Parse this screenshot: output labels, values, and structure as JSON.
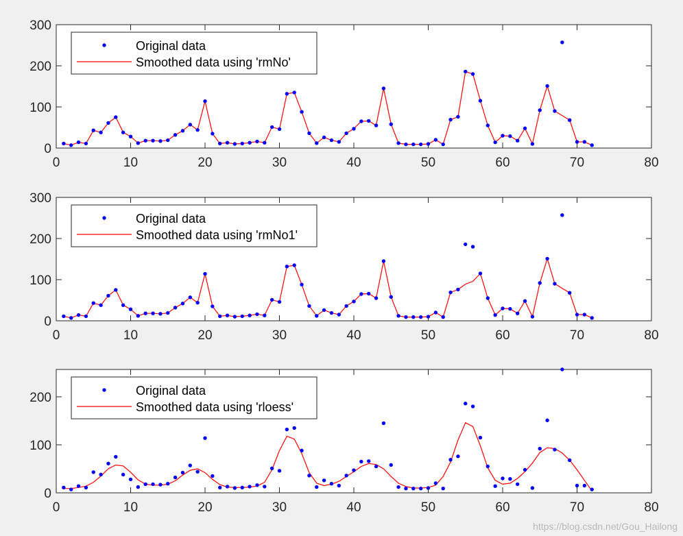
{
  "figure": {
    "watermark": "https://blog.csdn.net/Gou_Hailong",
    "colors": {
      "data": "#0000ff",
      "smooth": "#ff0000",
      "axis": "#262626",
      "background": "#f0f0f0",
      "axes_face": "#ffffff"
    }
  },
  "chart_data": [
    {
      "type": "line",
      "title": "",
      "xlabel": "",
      "ylabel": "",
      "xlim": [
        0,
        80
      ],
      "ylim": [
        0,
        300
      ],
      "xticks": [
        0,
        10,
        20,
        30,
        40,
        50,
        60,
        70,
        80
      ],
      "yticks": [
        0,
        100,
        200,
        300
      ],
      "legend": {
        "position": "top-left",
        "entries": [
          "Original data",
          "Smoothed data using 'rmNo'"
        ]
      },
      "series": [
        {
          "name": "Original data",
          "kind": "scatter",
          "x": [
            1,
            2,
            3,
            4,
            5,
            6,
            7,
            8,
            9,
            10,
            11,
            12,
            13,
            14,
            15,
            16,
            17,
            18,
            19,
            20,
            21,
            22,
            23,
            24,
            25,
            26,
            27,
            28,
            29,
            30,
            31,
            32,
            33,
            34,
            35,
            36,
            37,
            38,
            39,
            40,
            41,
            42,
            43,
            44,
            45,
            46,
            47,
            48,
            49,
            50,
            51,
            52,
            53,
            54,
            55,
            56,
            57,
            58,
            59,
            60,
            61,
            62,
            63,
            64,
            65,
            66,
            67,
            68,
            69,
            70,
            71,
            72
          ],
          "values": [
            11,
            7,
            14,
            11,
            43,
            38,
            61,
            75,
            38,
            28,
            12,
            18,
            18,
            17,
            19,
            32,
            42,
            57,
            44,
            114,
            35,
            11,
            13,
            10,
            11,
            13,
            16,
            13,
            51,
            46,
            132,
            135,
            88,
            36,
            12,
            26,
            19,
            15,
            36,
            47,
            65,
            66,
            55,
            145,
            58,
            12,
            9,
            9,
            9,
            10,
            20,
            9,
            69,
            76,
            186,
            180,
            115,
            55,
            14,
            30,
            29,
            18,
            48,
            10,
            92,
            151,
            90,
            257,
            68,
            15,
            15,
            7
          ]
        },
        {
          "name": "Smoothed data using 'rmNo'",
          "kind": "line",
          "x": [
            1,
            2,
            3,
            4,
            5,
            6,
            7,
            8,
            9,
            10,
            11,
            12,
            13,
            14,
            15,
            16,
            17,
            18,
            19,
            20,
            21,
            22,
            23,
            24,
            25,
            26,
            27,
            28,
            29,
            30,
            31,
            32,
            33,
            34,
            35,
            36,
            37,
            38,
            39,
            40,
            41,
            42,
            43,
            44,
            45,
            46,
            47,
            48,
            49,
            50,
            51,
            52,
            53,
            54,
            55,
            56,
            57,
            58,
            59,
            60,
            61,
            62,
            63,
            64,
            65,
            66,
            67,
            68,
            69,
            70,
            71,
            72
          ],
          "values": [
            11,
            7,
            14,
            11,
            43,
            38,
            61,
            75,
            38,
            28,
            12,
            18,
            18,
            17,
            19,
            32,
            42,
            57,
            44,
            114,
            35,
            11,
            13,
            10,
            11,
            13,
            16,
            13,
            51,
            46,
            132,
            135,
            88,
            36,
            12,
            26,
            19,
            15,
            36,
            47,
            65,
            66,
            55,
            145,
            58,
            12,
            9,
            9,
            9,
            10,
            20,
            9,
            69,
            76,
            186,
            180,
            115,
            55,
            14,
            30,
            29,
            18,
            48,
            10,
            92,
            151,
            90,
            79,
            68,
            15,
            15,
            7
          ]
        }
      ]
    },
    {
      "type": "line",
      "title": "",
      "xlabel": "",
      "ylabel": "",
      "xlim": [
        0,
        80
      ],
      "ylim": [
        0,
        300
      ],
      "xticks": [
        0,
        10,
        20,
        30,
        40,
        50,
        60,
        70,
        80
      ],
      "yticks": [
        0,
        100,
        200,
        300
      ],
      "legend": {
        "position": "top-left",
        "entries": [
          "Original data",
          "Smoothed data using 'rmNo1'"
        ]
      },
      "series": [
        {
          "name": "Original data",
          "kind": "scatter",
          "x": [
            1,
            2,
            3,
            4,
            5,
            6,
            7,
            8,
            9,
            10,
            11,
            12,
            13,
            14,
            15,
            16,
            17,
            18,
            19,
            20,
            21,
            22,
            23,
            24,
            25,
            26,
            27,
            28,
            29,
            30,
            31,
            32,
            33,
            34,
            35,
            36,
            37,
            38,
            39,
            40,
            41,
            42,
            43,
            44,
            45,
            46,
            47,
            48,
            49,
            50,
            51,
            52,
            53,
            54,
            55,
            56,
            57,
            58,
            59,
            60,
            61,
            62,
            63,
            64,
            65,
            66,
            67,
            68,
            69,
            70,
            71,
            72
          ],
          "values": [
            11,
            7,
            14,
            11,
            43,
            38,
            61,
            75,
            38,
            28,
            12,
            18,
            18,
            17,
            19,
            32,
            42,
            57,
            44,
            114,
            35,
            11,
            13,
            10,
            11,
            13,
            16,
            13,
            51,
            46,
            132,
            135,
            88,
            36,
            12,
            26,
            19,
            15,
            36,
            47,
            65,
            66,
            55,
            145,
            58,
            12,
            9,
            9,
            9,
            10,
            20,
            9,
            69,
            76,
            186,
            180,
            115,
            55,
            14,
            30,
            29,
            18,
            48,
            10,
            92,
            151,
            90,
            257,
            68,
            15,
            15,
            7
          ]
        },
        {
          "name": "Smoothed data using 'rmNo1'",
          "kind": "line",
          "x": [
            1,
            2,
            3,
            4,
            5,
            6,
            7,
            8,
            9,
            10,
            11,
            12,
            13,
            14,
            15,
            16,
            17,
            18,
            19,
            20,
            21,
            22,
            23,
            24,
            25,
            26,
            27,
            28,
            29,
            30,
            31,
            32,
            33,
            34,
            35,
            36,
            37,
            38,
            39,
            40,
            41,
            42,
            43,
            44,
            45,
            46,
            47,
            48,
            49,
            50,
            51,
            52,
            53,
            54,
            55,
            56,
            57,
            58,
            59,
            60,
            61,
            62,
            63,
            64,
            65,
            66,
            67,
            68,
            69,
            70,
            71,
            72
          ],
          "values": [
            11,
            7,
            14,
            11,
            43,
            38,
            61,
            75,
            38,
            28,
            12,
            18,
            18,
            17,
            19,
            32,
            42,
            57,
            44,
            114,
            35,
            11,
            13,
            10,
            11,
            13,
            16,
            13,
            51,
            46,
            132,
            135,
            88,
            36,
            12,
            26,
            19,
            15,
            36,
            47,
            65,
            66,
            55,
            145,
            58,
            12,
            9,
            9,
            9,
            10,
            20,
            9,
            69,
            76,
            89,
            96,
            115,
            55,
            14,
            30,
            29,
            18,
            48,
            10,
            92,
            151,
            90,
            79,
            68,
            15,
            15,
            7
          ]
        }
      ]
    },
    {
      "type": "line",
      "title": "",
      "xlabel": "",
      "ylabel": "",
      "xlim": [
        0,
        80
      ],
      "ylim": [
        0,
        257
      ],
      "xticks": [
        0,
        10,
        20,
        30,
        40,
        50,
        60,
        70,
        80
      ],
      "yticks": [
        0,
        100,
        200
      ],
      "legend": {
        "position": "top-left",
        "entries": [
          "Original data",
          "Smoothed data using 'rloess'"
        ]
      },
      "series": [
        {
          "name": "Original data",
          "kind": "scatter",
          "x": [
            1,
            2,
            3,
            4,
            5,
            6,
            7,
            8,
            9,
            10,
            11,
            12,
            13,
            14,
            15,
            16,
            17,
            18,
            19,
            20,
            21,
            22,
            23,
            24,
            25,
            26,
            27,
            28,
            29,
            30,
            31,
            32,
            33,
            34,
            35,
            36,
            37,
            38,
            39,
            40,
            41,
            42,
            43,
            44,
            45,
            46,
            47,
            48,
            49,
            50,
            51,
            52,
            53,
            54,
            55,
            56,
            57,
            58,
            59,
            60,
            61,
            62,
            63,
            64,
            65,
            66,
            67,
            68,
            69,
            70,
            71,
            72
          ],
          "values": [
            11,
            7,
            14,
            11,
            43,
            38,
            61,
            75,
            38,
            28,
            12,
            18,
            18,
            17,
            19,
            32,
            42,
            57,
            44,
            114,
            35,
            11,
            13,
            10,
            11,
            13,
            16,
            13,
            51,
            46,
            132,
            135,
            88,
            36,
            12,
            26,
            19,
            15,
            36,
            47,
            65,
            66,
            55,
            145,
            58,
            12,
            9,
            9,
            9,
            10,
            20,
            9,
            69,
            76,
            186,
            180,
            115,
            55,
            14,
            30,
            29,
            18,
            48,
            10,
            92,
            151,
            90,
            257,
            68,
            15,
            15,
            7
          ]
        },
        {
          "name": "Smoothed data using 'rloess'",
          "kind": "line",
          "x": [
            1,
            2,
            3,
            4,
            5,
            6,
            7,
            8,
            9,
            10,
            11,
            12,
            13,
            14,
            15,
            16,
            17,
            18,
            19,
            20,
            21,
            22,
            23,
            24,
            25,
            26,
            27,
            28,
            29,
            30,
            31,
            32,
            33,
            34,
            35,
            36,
            37,
            38,
            39,
            40,
            41,
            42,
            43,
            44,
            45,
            46,
            47,
            48,
            49,
            50,
            51,
            52,
            53,
            54,
            55,
            56,
            57,
            58,
            59,
            60,
            61,
            62,
            63,
            64,
            65,
            66,
            67,
            68,
            69,
            70,
            71,
            72
          ],
          "values": [
            9,
            9,
            11,
            14,
            22,
            35,
            50,
            58,
            56,
            43,
            27,
            18,
            16,
            16,
            18,
            25,
            37,
            47,
            50,
            42,
            28,
            17,
            12,
            11,
            11,
            12,
            14,
            22,
            48,
            88,
            118,
            112,
            82,
            42,
            20,
            15,
            18,
            24,
            34,
            44,
            55,
            61,
            59,
            50,
            34,
            20,
            13,
            10,
            10,
            11,
            16,
            34,
            64,
            110,
            146,
            138,
            98,
            52,
            26,
            18,
            20,
            30,
            44,
            62,
            84,
            94,
            92,
            83,
            68,
            48,
            26,
            4
          ]
        }
      ]
    }
  ]
}
